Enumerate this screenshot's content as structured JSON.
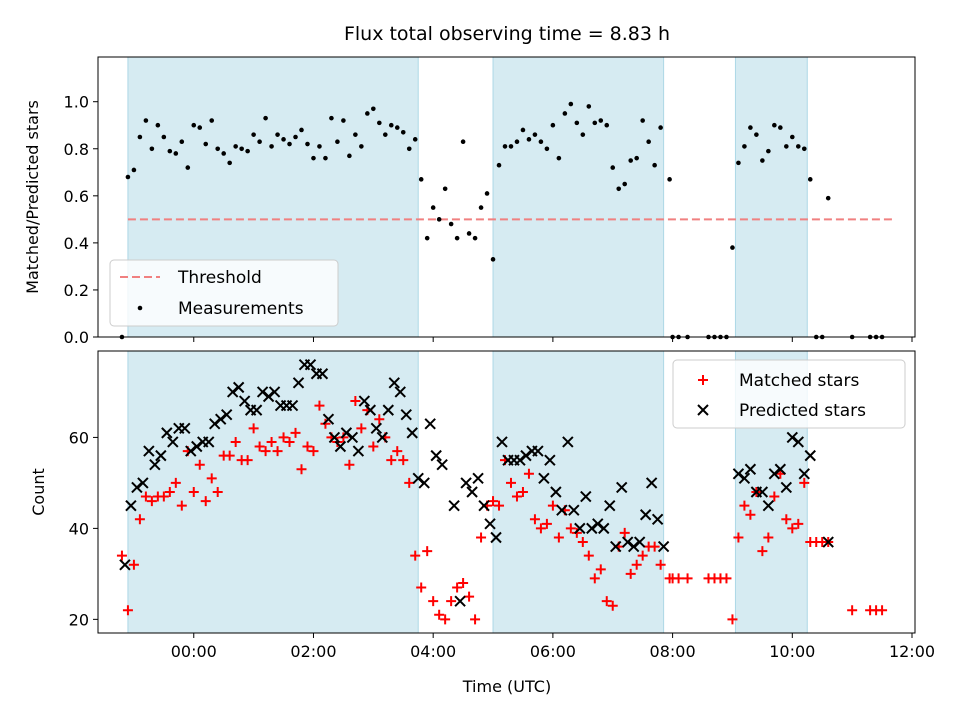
{
  "chart_data": [
    {
      "type": "scatter",
      "title": "Flux total observing time = 8.83 h",
      "ylabel": "Matched/Predicted stars",
      "xlabel": "",
      "xlim": [
        -1.6,
        12.05
      ],
      "ylim": [
        0.0,
        1.19
      ],
      "x_ticks": [
        0,
        2,
        4,
        6,
        8,
        10,
        12
      ],
      "y_ticks": [
        0.0,
        0.2,
        0.4,
        0.6,
        0.8,
        1.0
      ],
      "y_tick_labels": [
        "0.0",
        "0.2",
        "0.4",
        "0.6",
        "0.8",
        "1.0"
      ],
      "grid": false,
      "legend": {
        "position": "lower-left",
        "entries": [
          "Threshold",
          "Measurements"
        ]
      },
      "shaded_regions": [
        [
          -1.1,
          3.75
        ],
        [
          5.0,
          7.85
        ],
        [
          9.05,
          10.25
        ]
      ],
      "threshold": {
        "name": "Threshold",
        "value": 0.5,
        "x_range": [
          -1.1,
          11.7
        ],
        "color": "#f08080"
      },
      "series": [
        {
          "name": "Measurements",
          "color": "#000000",
          "x": [
            -1.2,
            -1.1,
            -1.0,
            -0.9,
            -0.8,
            -0.7,
            -0.6,
            -0.5,
            -0.4,
            -0.3,
            -0.2,
            -0.1,
            0.0,
            0.1,
            0.2,
            0.3,
            0.4,
            0.5,
            0.6,
            0.7,
            0.8,
            0.9,
            1.0,
            1.1,
            1.2,
            1.3,
            1.4,
            1.5,
            1.6,
            1.7,
            1.8,
            1.9,
            2.0,
            2.1,
            2.2,
            2.3,
            2.4,
            2.5,
            2.6,
            2.7,
            2.8,
            2.9,
            3.0,
            3.1,
            3.2,
            3.3,
            3.4,
            3.5,
            3.6,
            3.7,
            3.8,
            3.9,
            4.0,
            4.1,
            4.2,
            4.3,
            4.4,
            4.5,
            4.6,
            4.7,
            4.8,
            4.9,
            5.0,
            5.1,
            5.2,
            5.3,
            5.4,
            5.5,
            5.6,
            5.7,
            5.8,
            5.9,
            6.0,
            6.1,
            6.2,
            6.3,
            6.4,
            6.5,
            6.6,
            6.7,
            6.8,
            6.9,
            7.0,
            7.1,
            7.2,
            7.3,
            7.4,
            7.5,
            7.6,
            7.7,
            7.8,
            7.95,
            8.0,
            8.1,
            8.25,
            8.6,
            8.7,
            8.8,
            8.9,
            9.0,
            9.1,
            9.2,
            9.3,
            9.4,
            9.5,
            9.6,
            9.7,
            9.8,
            9.9,
            10.0,
            10.1,
            10.2,
            10.3,
            10.4,
            10.5,
            10.6,
            11.0,
            11.3,
            11.4,
            11.5
          ],
          "y": [
            0.0,
            0.68,
            0.71,
            0.85,
            0.92,
            0.8,
            0.9,
            0.85,
            0.79,
            0.78,
            0.83,
            0.72,
            0.9,
            0.89,
            0.82,
            0.92,
            0.8,
            0.78,
            0.74,
            0.81,
            0.8,
            0.79,
            0.86,
            0.83,
            0.93,
            0.81,
            0.86,
            0.84,
            0.82,
            0.85,
            0.88,
            0.82,
            0.76,
            0.81,
            0.76,
            0.93,
            0.83,
            0.92,
            0.77,
            0.86,
            0.81,
            0.95,
            0.97,
            0.91,
            0.86,
            0.9,
            0.89,
            0.87,
            0.8,
            0.84,
            0.67,
            0.42,
            0.55,
            0.5,
            0.63,
            0.48,
            0.42,
            0.83,
            0.44,
            0.42,
            0.55,
            0.61,
            0.33,
            0.73,
            0.81,
            0.81,
            0.83,
            0.88,
            0.84,
            0.86,
            0.83,
            0.8,
            0.9,
            0.76,
            0.95,
            0.99,
            0.91,
            0.86,
            0.98,
            0.91,
            0.92,
            0.9,
            0.72,
            0.63,
            0.65,
            0.75,
            0.76,
            0.92,
            0.83,
            0.73,
            0.89,
            0.67,
            0.0,
            0.0,
            0.0,
            0.0,
            0.0,
            0.0,
            0.0,
            0.38,
            0.74,
            0.81,
            0.89,
            0.86,
            0.75,
            0.79,
            0.9,
            0.89,
            0.81,
            0.85,
            0.81,
            0.8,
            0.67,
            0.0,
            0.0,
            0.59,
            0.0,
            0.0,
            0.0,
            0.0
          ]
        }
      ]
    },
    {
      "type": "scatter",
      "title": "",
      "ylabel": "Count",
      "xlabel": "Time (UTC)",
      "xlim": [
        -1.6,
        12.05
      ],
      "ylim": [
        17,
        79
      ],
      "x_ticks": [
        0,
        2,
        4,
        6,
        8,
        10,
        12
      ],
      "x_tick_labels": [
        "00:00",
        "02:00",
        "04:00",
        "06:00",
        "08:00",
        "10:00",
        "12:00"
      ],
      "y_ticks": [
        20,
        40,
        60
      ],
      "y_tick_labels": [
        "20",
        "40",
        "60"
      ],
      "grid": false,
      "legend": {
        "position": "upper-right",
        "entries": [
          "Matched stars",
          "Predicted stars"
        ]
      },
      "shaded_regions": [
        [
          -1.1,
          3.75
        ],
        [
          5.0,
          7.85
        ],
        [
          9.05,
          10.25
        ]
      ],
      "series": [
        {
          "name": "Matched stars",
          "marker": "plus",
          "color": "#ff0000",
          "x": [
            -1.2,
            -1.1,
            -1.0,
            -0.9,
            -0.8,
            -0.7,
            -0.6,
            -0.5,
            -0.4,
            -0.3,
            -0.2,
            -0.1,
            0.0,
            0.1,
            0.2,
            0.3,
            0.4,
            0.5,
            0.6,
            0.7,
            0.8,
            0.9,
            1.0,
            1.1,
            1.2,
            1.3,
            1.4,
            1.5,
            1.6,
            1.7,
            1.8,
            1.9,
            2.0,
            2.1,
            2.2,
            2.3,
            2.4,
            2.5,
            2.6,
            2.7,
            2.8,
            2.9,
            3.0,
            3.1,
            3.2,
            3.3,
            3.4,
            3.5,
            3.6,
            3.7,
            3.8,
            3.9,
            4.0,
            4.1,
            4.2,
            4.3,
            4.4,
            4.5,
            4.6,
            4.7,
            4.8,
            4.9,
            5.0,
            5.1,
            5.2,
            5.3,
            5.4,
            5.5,
            5.6,
            5.7,
            5.8,
            5.9,
            6.0,
            6.1,
            6.2,
            6.3,
            6.4,
            6.5,
            6.6,
            6.7,
            6.8,
            6.9,
            7.0,
            7.1,
            7.2,
            7.3,
            7.4,
            7.5,
            7.6,
            7.7,
            7.8,
            7.95,
            8.0,
            8.1,
            8.25,
            8.6,
            8.7,
            8.8,
            8.9,
            9.0,
            9.1,
            9.2,
            9.3,
            9.4,
            9.5,
            9.6,
            9.7,
            9.8,
            9.9,
            10.0,
            10.1,
            10.2,
            10.3,
            10.4,
            10.5,
            10.6,
            11.0,
            11.3,
            11.4,
            11.5
          ],
          "y": [
            34,
            22,
            32,
            42,
            47,
            46,
            47,
            47,
            48,
            50,
            45,
            57,
            48,
            54,
            46,
            51,
            48,
            56,
            56,
            59,
            55,
            55,
            62,
            58,
            57,
            59,
            57,
            60,
            59,
            61,
            53,
            58,
            57,
            67,
            63,
            60,
            59,
            60,
            54,
            68,
            62,
            66,
            58,
            64,
            60,
            55,
            57,
            55,
            50,
            34,
            27,
            35,
            24,
            21,
            20,
            24,
            27,
            28,
            25,
            20,
            38,
            45,
            46,
            45,
            55,
            50,
            47,
            48,
            52,
            42,
            40,
            41,
            45,
            38,
            44,
            40,
            39,
            37,
            34,
            29,
            31,
            24,
            23,
            36,
            39,
            30,
            32,
            34,
            36,
            36,
            32,
            29,
            29,
            29,
            29,
            29,
            29,
            29,
            29,
            20,
            38,
            45,
            43,
            48,
            35,
            38,
            47,
            52,
            42,
            40,
            41,
            50,
            37,
            37,
            37,
            37,
            22,
            22,
            22,
            22
          ]
        },
        {
          "name": "Predicted stars",
          "marker": "x",
          "color": "#000000",
          "x": [
            -1.15,
            -1.05,
            -0.95,
            -0.85,
            -0.75,
            -0.65,
            -0.55,
            -0.45,
            -0.35,
            -0.25,
            -0.15,
            -0.05,
            0.05,
            0.15,
            0.25,
            0.35,
            0.45,
            0.55,
            0.65,
            0.75,
            0.85,
            0.95,
            1.05,
            1.15,
            1.25,
            1.35,
            1.45,
            1.55,
            1.65,
            1.75,
            1.85,
            1.95,
            2.05,
            2.15,
            2.25,
            2.35,
            2.45,
            2.55,
            2.65,
            2.75,
            2.85,
            2.95,
            3.05,
            3.15,
            3.25,
            3.35,
            3.45,
            3.55,
            3.65,
            3.75,
            3.85,
            3.95,
            4.05,
            4.15,
            4.35,
            4.45,
            4.55,
            4.65,
            4.75,
            4.85,
            4.95,
            5.05,
            5.15,
            5.25,
            5.35,
            5.45,
            5.55,
            5.65,
            5.75,
            5.85,
            5.95,
            6.05,
            6.15,
            6.25,
            6.35,
            6.45,
            6.55,
            6.65,
            6.75,
            6.85,
            6.95,
            7.05,
            7.15,
            7.25,
            7.35,
            7.45,
            7.55,
            7.65,
            7.75,
            7.85,
            9.1,
            9.2,
            9.3,
            9.4,
            9.5,
            9.6,
            9.7,
            9.8,
            9.9,
            10.0,
            10.1,
            10.2,
            10.3,
            10.6
          ],
          "y": [
            32,
            45,
            49,
            50,
            57,
            54,
            56,
            61,
            59,
            62,
            62,
            57,
            58,
            59,
            59,
            63,
            64,
            65,
            70,
            71,
            68,
            66,
            66,
            70,
            69,
            70,
            67,
            67,
            67,
            72,
            76,
            76,
            74,
            74,
            64,
            60,
            58,
            61,
            60,
            57,
            68,
            66,
            62,
            60,
            66,
            72,
            70,
            65,
            61,
            51,
            50,
            63,
            56,
            54,
            45,
            24,
            50,
            48,
            51,
            45,
            41,
            38,
            59,
            55,
            55,
            55,
            56,
            57,
            57,
            51,
            55,
            48,
            44,
            59,
            44,
            40,
            47,
            40,
            41,
            40,
            45,
            36,
            49,
            37,
            36,
            37,
            43,
            50,
            42,
            36,
            52,
            51,
            53,
            48,
            48,
            45,
            52,
            53,
            49,
            60,
            59,
            52,
            56,
            37
          ]
        }
      ]
    }
  ]
}
